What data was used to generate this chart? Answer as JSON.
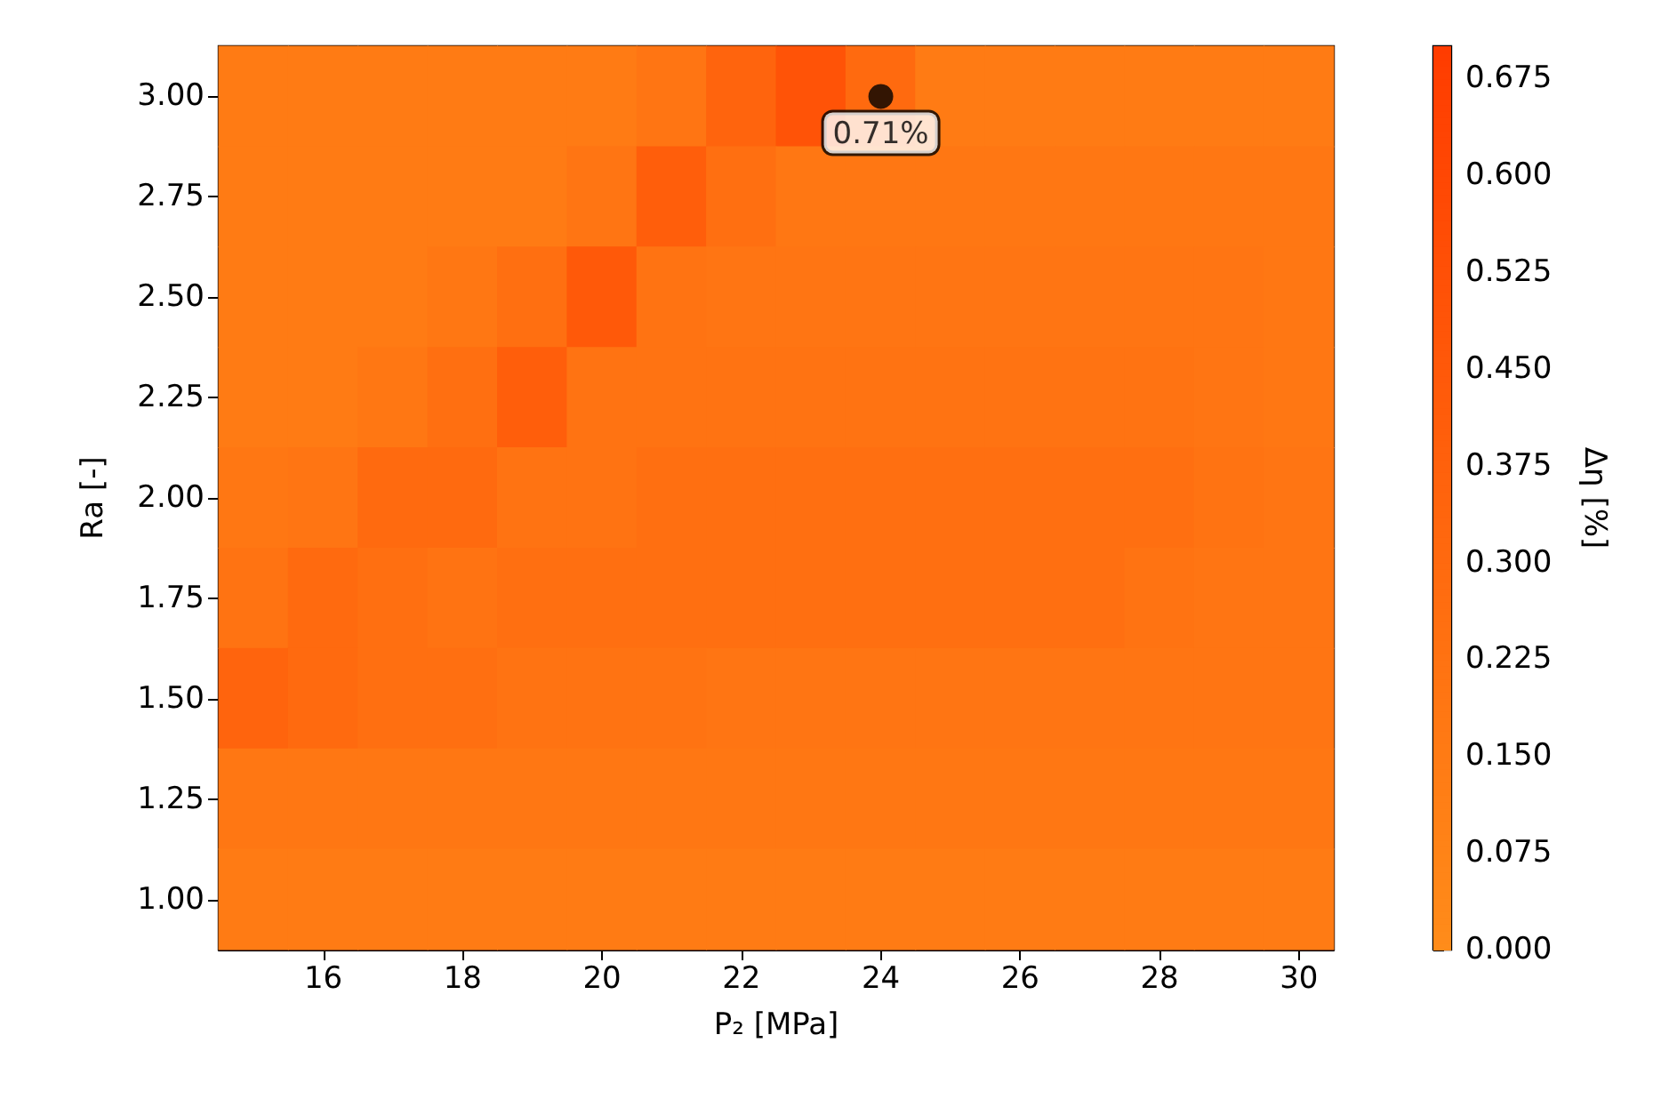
{
  "chart_data": {
    "type": "heatmap",
    "xlabel": "P₂ [MPa]",
    "ylabel": "Ra [-]",
    "clabel": "Δη [%]",
    "categories": [
      null,
      "16",
      null,
      "18",
      null,
      "20",
      null,
      "22",
      null,
      "24",
      null,
      "26",
      null,
      "28",
      null,
      "30"
    ],
    "y_categories": [
      "3.00",
      "2.75",
      "2.50",
      "2.25",
      "2.00",
      "1.75",
      "1.50",
      "1.25",
      "1.00"
    ],
    "cells": [
      [
        0.15,
        0.15,
        0.15,
        0.15,
        0.15,
        0.15,
        0.2,
        0.35,
        0.5,
        0.3,
        0.15,
        0.15,
        0.15,
        0.15,
        0.15,
        0.15
      ],
      [
        0.15,
        0.15,
        0.15,
        0.15,
        0.15,
        0.2,
        0.4,
        0.25,
        0.18,
        0.18,
        0.18,
        0.18,
        0.18,
        0.18,
        0.18,
        0.18
      ],
      [
        0.15,
        0.15,
        0.15,
        0.18,
        0.25,
        0.45,
        0.22,
        0.2,
        0.2,
        0.2,
        0.2,
        0.2,
        0.2,
        0.2,
        0.2,
        0.18
      ],
      [
        0.15,
        0.15,
        0.18,
        0.25,
        0.4,
        0.22,
        0.22,
        0.22,
        0.22,
        0.22,
        0.22,
        0.22,
        0.22,
        0.22,
        0.2,
        0.18
      ],
      [
        0.18,
        0.2,
        0.3,
        0.3,
        0.22,
        0.22,
        0.25,
        0.25,
        0.25,
        0.25,
        0.25,
        0.25,
        0.25,
        0.25,
        0.22,
        0.2
      ],
      [
        0.22,
        0.3,
        0.25,
        0.22,
        0.25,
        0.25,
        0.25,
        0.25,
        0.25,
        0.25,
        0.25,
        0.25,
        0.25,
        0.22,
        0.2,
        0.2
      ],
      [
        0.35,
        0.3,
        0.25,
        0.25,
        0.22,
        0.22,
        0.22,
        0.2,
        0.2,
        0.2,
        0.2,
        0.2,
        0.2,
        0.2,
        0.2,
        0.2
      ],
      [
        0.18,
        0.18,
        0.18,
        0.18,
        0.18,
        0.18,
        0.18,
        0.18,
        0.18,
        0.18,
        0.18,
        0.18,
        0.18,
        0.18,
        0.18,
        0.18
      ],
      [
        0.15,
        0.15,
        0.15,
        0.15,
        0.15,
        0.15,
        0.15,
        0.15,
        0.15,
        0.15,
        0.15,
        0.15,
        0.15,
        0.15,
        0.15,
        0.15
      ]
    ],
    "clim": [
      0,
      0.7
    ],
    "cticks": [
      {
        "value": 0,
        "label": "0.000"
      },
      {
        "value": 0.075,
        "label": "0.075"
      },
      {
        "value": 0.15,
        "label": "0.150"
      },
      {
        "value": 0.225,
        "label": "0.225"
      },
      {
        "value": 0.3,
        "label": "0.300"
      },
      {
        "value": 0.375,
        "label": "0.375"
      },
      {
        "value": 0.45,
        "label": "0.450"
      },
      {
        "value": 0.525,
        "label": "0.525"
      },
      {
        "value": 0.6,
        "label": "0.600"
      },
      {
        "value": 0.675,
        "label": "0.675"
      }
    ],
    "annotations": [
      {
        "text": "0.71%",
        "x": "24",
        "y": "3.00"
      }
    ],
    "grid": false
  }
}
